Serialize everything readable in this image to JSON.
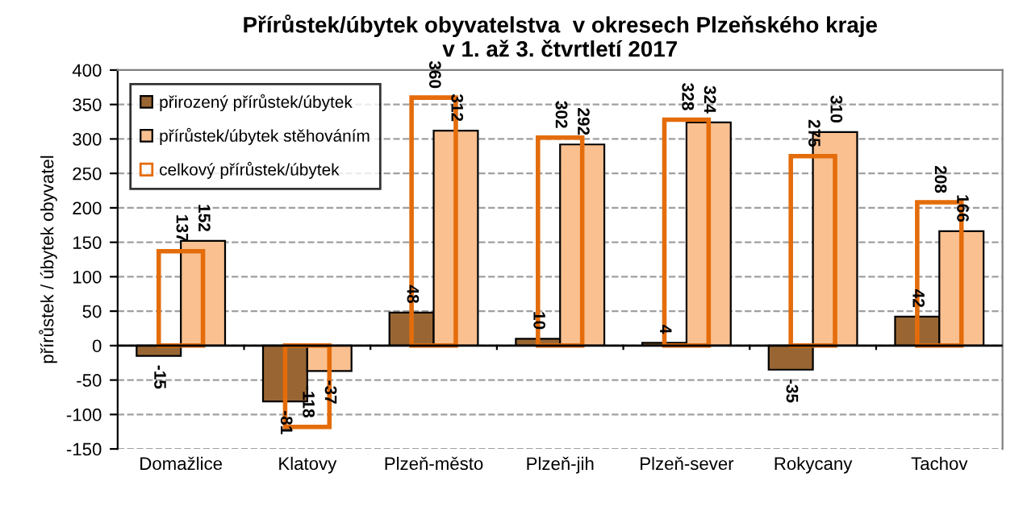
{
  "chart_data": {
    "type": "bar",
    "title": "Přírůstek/úbytek obyvatelstva  v okresech Plzeňského kraje\nv 1. až 3. čtvrtletí 2017",
    "ylabel": "přírůstek / úbytek obyvatel",
    "categories": [
      "Domažlice",
      "Klatovy",
      "Plzeň-město",
      "Plzeň-jih",
      "Plzeň-sever",
      "Rokycany",
      "Tachov"
    ],
    "series": [
      {
        "name": "přirozený přírůstek/úbytek",
        "color": "#996633",
        "values": [
          -15,
          -81,
          48,
          10,
          4,
          -35,
          42
        ]
      },
      {
        "name": "přírůstek/úbytek stěhováním",
        "color": "#fac090",
        "values": [
          152,
          -37,
          312,
          292,
          324,
          310,
          166
        ]
      },
      {
        "name": "celkový přírůstek/úbytek",
        "color": "#e46c0a",
        "values": [
          137,
          -118,
          360,
          302,
          328,
          275,
          208
        ]
      }
    ],
    "ylim": [
      -150,
      400
    ],
    "yticks": [
      -150,
      -100,
      -50,
      0,
      50,
      100,
      150,
      200,
      250,
      300,
      350,
      400
    ],
    "grid": "y",
    "legend": "top left",
    "data_labels": true
  }
}
